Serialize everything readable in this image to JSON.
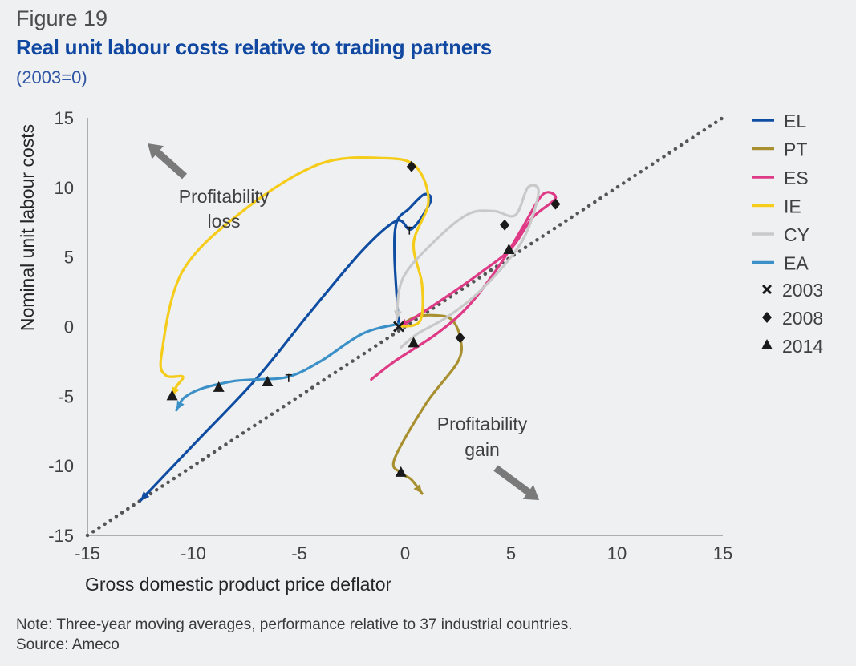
{
  "figure_label": "Figure 19",
  "title": "Real unit labour costs relative to trading partners",
  "subtitle": "(2003=0)",
  "note": "Note: Three-year moving averages, performance relative to 37 industrial countries.",
  "source": "Source: Ameco",
  "annotations": {
    "loss": [
      "Profitability",
      "loss"
    ],
    "gain": [
      "Profitability",
      "gain"
    ]
  },
  "chart_data": {
    "type": "line",
    "xlabel": "Gross domestic product price deflator",
    "ylabel": "Nominal unit labour costs",
    "xlim": [
      -15,
      15
    ],
    "ylim": [
      -15,
      15
    ],
    "xticks": [
      -15,
      -10,
      -5,
      0,
      5,
      10,
      15
    ],
    "yticks": [
      15,
      10,
      5,
      0,
      -5,
      -10,
      -15
    ],
    "reference_line": {
      "style": "dotted",
      "color": "#555555",
      "points": [
        [
          -15,
          -15
        ],
        [
          15,
          15
        ]
      ]
    },
    "legend_position": "right",
    "series": [
      {
        "name": "EL",
        "color": "#0f4da2",
        "points": [
          [
            -0.3,
            0
          ],
          [
            -0.5,
            5
          ],
          [
            -0.4,
            7.5
          ],
          [
            0.2,
            8.5
          ],
          [
            0.9,
            9.5
          ],
          [
            1.2,
            9
          ],
          [
            0.3,
            7
          ],
          [
            -0.4,
            7.6
          ],
          [
            -2,
            5.5
          ],
          [
            -4.5,
            1
          ],
          [
            -7,
            -3.7
          ],
          [
            -10,
            -8.5
          ],
          [
            -12.5,
            -12.5
          ]
        ],
        "markers": {
          "2003": [
            -0.3,
            0
          ],
          "2008": [
            0.2,
            6.9
          ],
          "2014": [
            -6.5,
            -4.0
          ]
        }
      },
      {
        "name": "PT",
        "color": "#a89030",
        "points": [
          [
            -0.3,
            0
          ],
          [
            0.5,
            0.7
          ],
          [
            1.5,
            0.8
          ],
          [
            2.2,
            0.5
          ],
          [
            2.6,
            -0.8
          ],
          [
            2.5,
            -2.5
          ],
          [
            1,
            -5.5
          ],
          [
            -0.5,
            -9.5
          ],
          [
            -0.2,
            -10.5
          ],
          [
            0.3,
            -11
          ],
          [
            0.8,
            -12
          ]
        ],
        "markers": {
          "2003": [
            -0.3,
            0
          ],
          "2008": [
            2.6,
            -0.8
          ],
          "2014": [
            -0.2,
            -10.5
          ]
        }
      },
      {
        "name": "ES",
        "color": "#de3a86",
        "points": [
          [
            -1.6,
            -3.8
          ],
          [
            -0.5,
            -2.5
          ],
          [
            1.5,
            -0.5
          ],
          [
            3,
            1.5
          ],
          [
            4.5,
            4.5
          ],
          [
            5.5,
            7
          ],
          [
            6.5,
            9.5
          ],
          [
            7.1,
            9.2
          ],
          [
            6,
            7.8
          ],
          [
            5,
            5.6
          ],
          [
            3.5,
            3.8
          ],
          [
            2,
            2.2
          ],
          [
            0.3,
            0.5
          ],
          [
            -0.3,
            0
          ]
        ],
        "markers": {
          "2003": [
            -0.3,
            0
          ],
          "2008": [
            7.1,
            8.8
          ],
          "2014": [
            4.9,
            5.5
          ]
        }
      },
      {
        "name": "IE",
        "color": "#f5cc1a",
        "points": [
          [
            -0.3,
            0
          ],
          [
            0.7,
            0.4
          ],
          [
            0.8,
            3
          ],
          [
            0.4,
            6
          ],
          [
            1.1,
            9
          ],
          [
            0.5,
            11.5
          ],
          [
            -1,
            12.1
          ],
          [
            -4,
            11.7
          ],
          [
            -7.5,
            8.5
          ],
          [
            -10.5,
            4
          ],
          [
            -11.5,
            -2
          ],
          [
            -11.3,
            -3.5
          ],
          [
            -10.5,
            -3.6
          ],
          [
            -10.8,
            -4.3
          ],
          [
            -11,
            -5
          ]
        ],
        "markers": {
          "2003": [
            -0.3,
            0
          ],
          "2008": [
            0.3,
            11.5
          ],
          "2014": [
            -11,
            -5
          ]
        }
      },
      {
        "name": "CY",
        "color": "#c9c9c9",
        "points": [
          [
            -0.2,
            -1.5
          ],
          [
            0.6,
            -0.5
          ],
          [
            2,
            0.7
          ],
          [
            3.5,
            2.5
          ],
          [
            5,
            5
          ],
          [
            5.8,
            7
          ],
          [
            6.3,
            9.7
          ],
          [
            5.8,
            10
          ],
          [
            5.2,
            8
          ],
          [
            4.2,
            8.3
          ],
          [
            3,
            8.1
          ],
          [
            1.5,
            6.3
          ],
          [
            -0.1,
            3.5
          ],
          [
            -0.4,
            0.5
          ]
        ],
        "markers": {
          "2003": [
            -0.3,
            0
          ],
          "2008": [
            4.7,
            7.3
          ],
          "2014": [
            0.4,
            -1.2
          ]
        }
      },
      {
        "name": "EA",
        "color": "#3b90c8",
        "points": [
          [
            -0.3,
            0.2
          ],
          [
            -2,
            -0.5
          ],
          [
            -4,
            -2.5
          ],
          [
            -5.5,
            -3.6
          ],
          [
            -7,
            -3.8
          ],
          [
            -8,
            -3.9
          ],
          [
            -9,
            -4.2
          ],
          [
            -9.5,
            -4.4
          ],
          [
            -10,
            -4.7
          ],
          [
            -10.5,
            -5.2
          ],
          [
            -10.8,
            -6
          ]
        ],
        "markers": {
          "2003": [
            -0.3,
            0
          ],
          "2008": [
            -5.5,
            -3.7
          ],
          "2014": [
            -8.8,
            -4.4
          ]
        }
      }
    ],
    "marker_legend": [
      {
        "label": "2003",
        "symbol": "cross"
      },
      {
        "label": "2008",
        "symbol": "diamond"
      },
      {
        "label": "2014",
        "symbol": "triangle"
      }
    ]
  }
}
